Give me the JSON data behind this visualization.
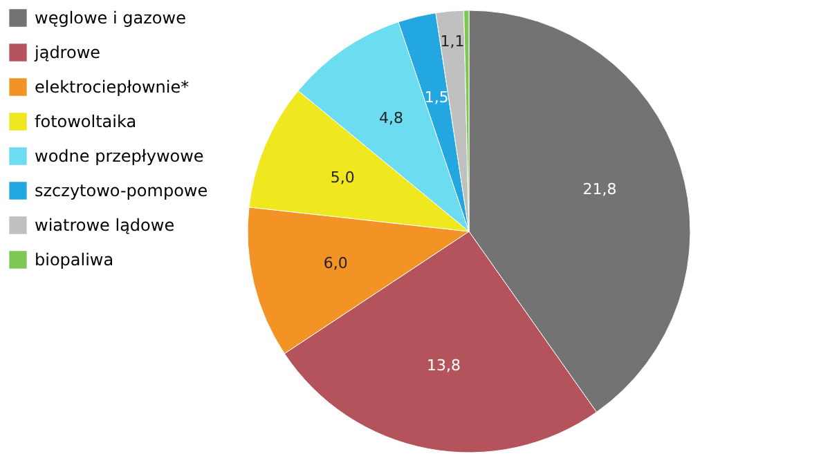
{
  "chart_data": {
    "type": "pie",
    "categories": [
      "węglowe i gazowe",
      "jądrowe",
      "elektrociepłownie*",
      "fotowoltaika",
      "wodne przepływowe",
      "szczytowo-pompowe",
      "wiatrowe lądowe",
      "biopaliwa"
    ],
    "values": [
      21.8,
      13.8,
      6.0,
      5.0,
      4.8,
      1.5,
      1.1,
      0.2
    ],
    "value_labels": [
      "21,8",
      "13,8",
      "6,0",
      "5,0",
      "4,8",
      "1,5",
      "1,1",
      null
    ],
    "colors": [
      "#737373",
      "#b5535c",
      "#f39325",
      "#f0e81e",
      "#6cdcf0",
      "#22a7e0",
      "#c0c0c0",
      "#7dc855"
    ],
    "legend": "left"
  }
}
